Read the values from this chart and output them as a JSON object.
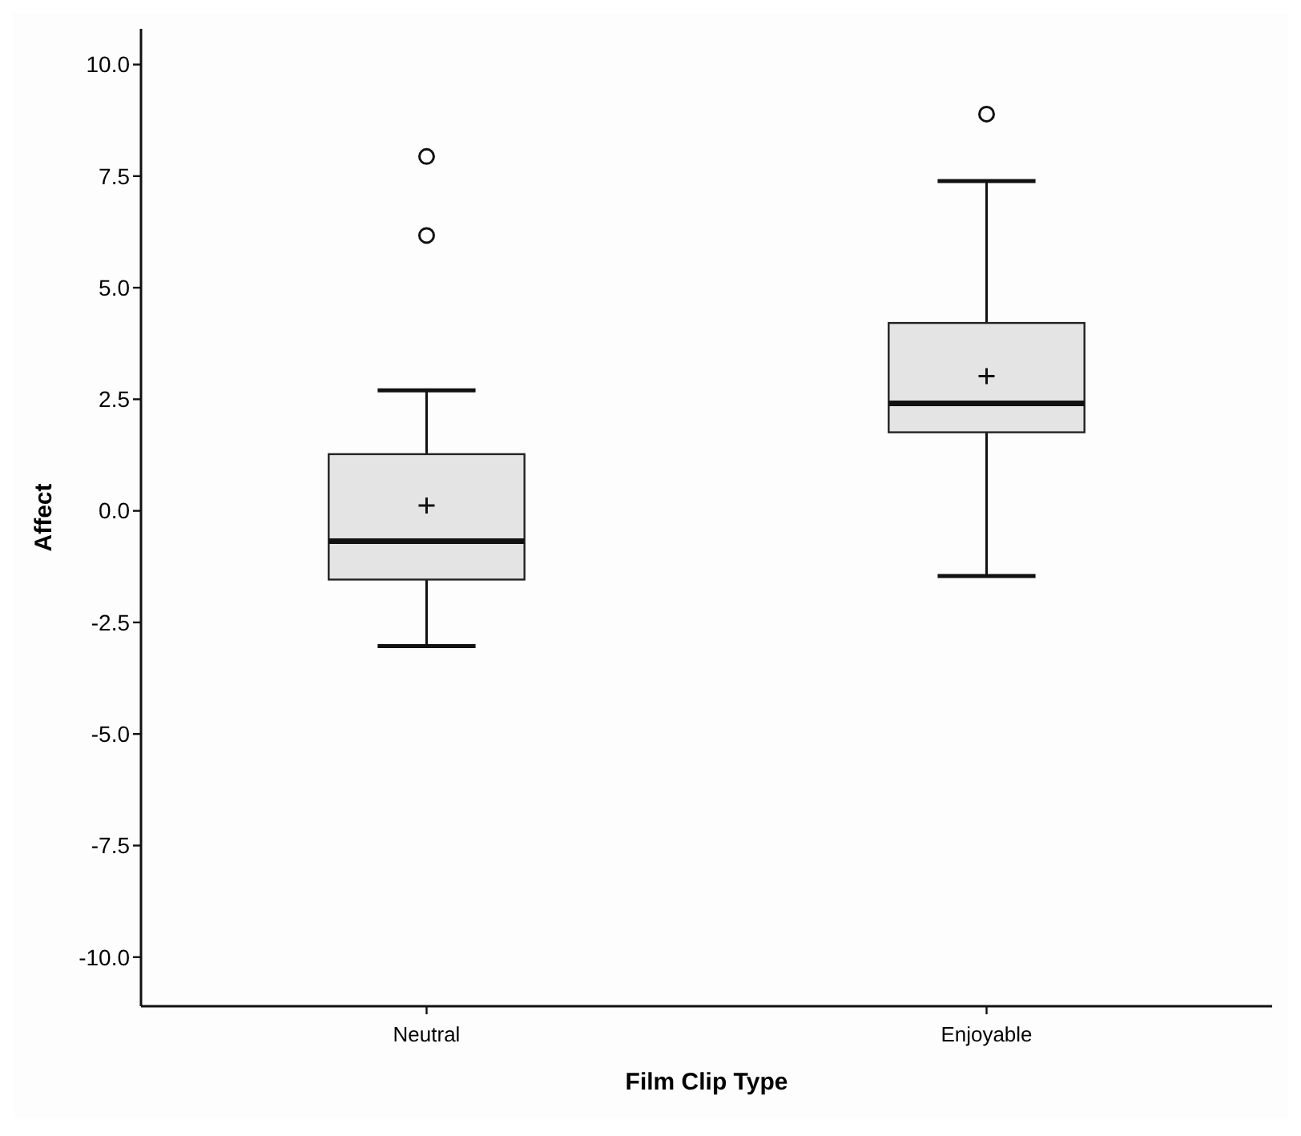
{
  "chart_data": {
    "type": "box",
    "xlabel": "Film Clip Type",
    "ylabel": "Affect",
    "categories": [
      "Neutral",
      "Enjoyable"
    ],
    "color": "#e4e4e4",
    "boxes": [
      {
        "low": -3.03,
        "q1": -1.54,
        "median": -0.68,
        "q3": 1.27,
        "high": 2.7,
        "mean": 0.12,
        "outliers": [
          7.94,
          6.17
        ]
      },
      {
        "low": -1.46,
        "q1": 1.76,
        "median": 2.41,
        "q3": 4.21,
        "high": 7.39,
        "mean": 3.02,
        "outliers": [
          8.89
        ]
      }
    ],
    "ylim": [
      -11.1,
      10.8
    ],
    "yticks": [
      {
        "value": -10,
        "label": "-10.0"
      },
      {
        "value": -7.5,
        "label": "-7.5"
      },
      {
        "value": -5,
        "label": "-5.0"
      },
      {
        "value": -2.5,
        "label": "-2.5"
      },
      {
        "value": 0,
        "label": "0.0"
      },
      {
        "value": 2.5,
        "label": "2.5"
      },
      {
        "value": 5,
        "label": "5.0"
      },
      {
        "value": 7.5,
        "label": "7.5"
      },
      {
        "value": 10,
        "label": "10.0"
      }
    ],
    "grid": false
  }
}
